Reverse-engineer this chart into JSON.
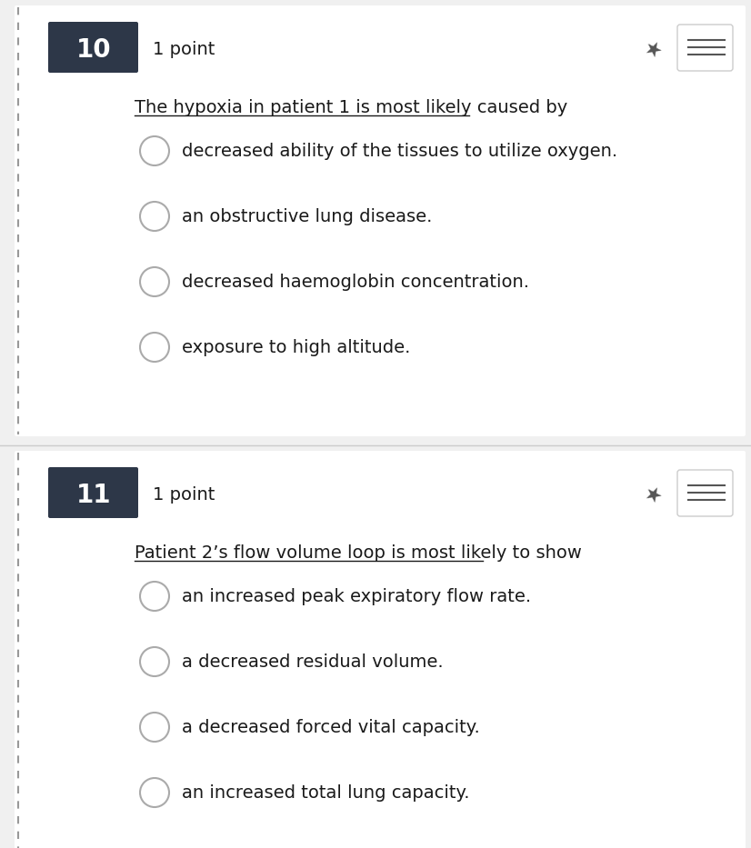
{
  "bg_color": "#f0f0f0",
  "white": "#ffffff",
  "dark_box_color": "#2d3748",
  "border_color": "#cccccc",
  "text_color": "#1a1a1a",
  "underline_color": "#1a1a1a",
  "circle_edge_color": "#aaaaaa",
  "question1": {
    "number": "10",
    "points": "1 point",
    "question_text": "The hypoxia in patient 1 is most likely caused by",
    "options": [
      "decreased ability of the tissues to utilize oxygen.",
      "an obstructive lung disease.",
      "decreased haemoglobin concentration.",
      "exposure to high altitude."
    ]
  },
  "question2": {
    "number": "11",
    "points": "1 point",
    "question_text": "Patient 2’s flow volume loop is most likely to show",
    "options": [
      "an increased peak expiratory flow rate.",
      "a decreased residual volume.",
      "a decreased forced vital capacity.",
      "an increased total lung capacity."
    ]
  }
}
